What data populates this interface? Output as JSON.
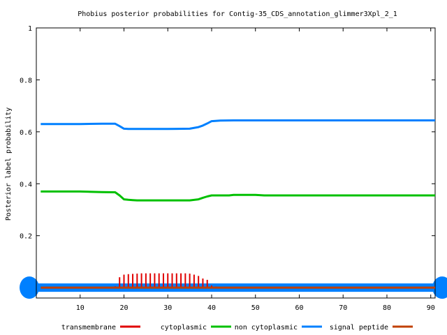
{
  "chart_data": {
    "type": "line",
    "title": "Phobius posterior probabilities for Contig-35_CDS_annotation_glimmer3Xpl_2_1",
    "xlabel": "",
    "ylabel": "Posterior label probability",
    "xlim": [
      0,
      91
    ],
    "ylim": [
      -0.04,
      1
    ],
    "x_ticks": [
      10,
      20,
      30,
      40,
      50,
      60,
      70,
      80,
      90
    ],
    "y_ticks": [
      0.2,
      0.4,
      0.6,
      0.8,
      1
    ],
    "y_tick_labels": [
      "0.2",
      "0.4",
      "0.6",
      "0.8",
      "1"
    ],
    "grid": false,
    "legend_position": "bottom",
    "series": [
      {
        "name": "transmembrane",
        "style": "impulses",
        "color": "#e00000",
        "x": [
          18,
          19,
          20,
          21,
          22,
          23,
          24,
          25,
          26,
          27,
          28,
          29,
          30,
          31,
          32,
          33,
          34,
          35,
          36,
          37,
          38,
          39,
          40,
          41,
          42,
          43
        ],
        "values": [
          0.005,
          0.04,
          0.05,
          0.052,
          0.053,
          0.054,
          0.055,
          0.055,
          0.055,
          0.055,
          0.055,
          0.055,
          0.055,
          0.055,
          0.055,
          0.055,
          0.055,
          0.054,
          0.05,
          0.045,
          0.035,
          0.03,
          0.008,
          0.004,
          0.003,
          0.003
        ]
      },
      {
        "name": "cytoplasmic",
        "style": "line",
        "color": "#00c000",
        "x": [
          1,
          10,
          15,
          18,
          19,
          20,
          21,
          22,
          23,
          25,
          30,
          35,
          37,
          38,
          39,
          40,
          44,
          45,
          50,
          52,
          60,
          70,
          80,
          90,
          91
        ],
        "values": [
          0.37,
          0.37,
          0.368,
          0.367,
          0.355,
          0.34,
          0.338,
          0.337,
          0.336,
          0.336,
          0.336,
          0.336,
          0.34,
          0.346,
          0.351,
          0.355,
          0.355,
          0.357,
          0.357,
          0.355,
          0.355,
          0.355,
          0.355,
          0.355,
          0.355
        ]
      },
      {
        "name": "non cytoplasmic",
        "style": "line",
        "color": "#0080ff",
        "x": [
          1,
          10,
          15,
          18,
          19,
          20,
          21,
          22,
          25,
          30,
          35,
          37,
          38,
          39,
          40,
          42,
          45,
          50,
          60,
          70,
          80,
          90,
          91
        ],
        "values": [
          0.63,
          0.63,
          0.631,
          0.631,
          0.622,
          0.612,
          0.611,
          0.611,
          0.611,
          0.611,
          0.612,
          0.618,
          0.624,
          0.632,
          0.641,
          0.643,
          0.644,
          0.644,
          0.644,
          0.644,
          0.644,
          0.644,
          0.644
        ]
      },
      {
        "name": "signal peptide",
        "style": "line",
        "color": "#c04000",
        "x": [
          1,
          91
        ],
        "values": [
          0,
          0
        ]
      }
    ],
    "legend": [
      {
        "label": "transmembrane",
        "color": "#e00000"
      },
      {
        "label": "cytoplasmic",
        "color": "#00c000"
      },
      {
        "label": "non cytoplasmic",
        "color": "#0080ff"
      },
      {
        "label": "signal peptide",
        "color": "#c04000"
      }
    ],
    "band_color": "#0080ff"
  }
}
